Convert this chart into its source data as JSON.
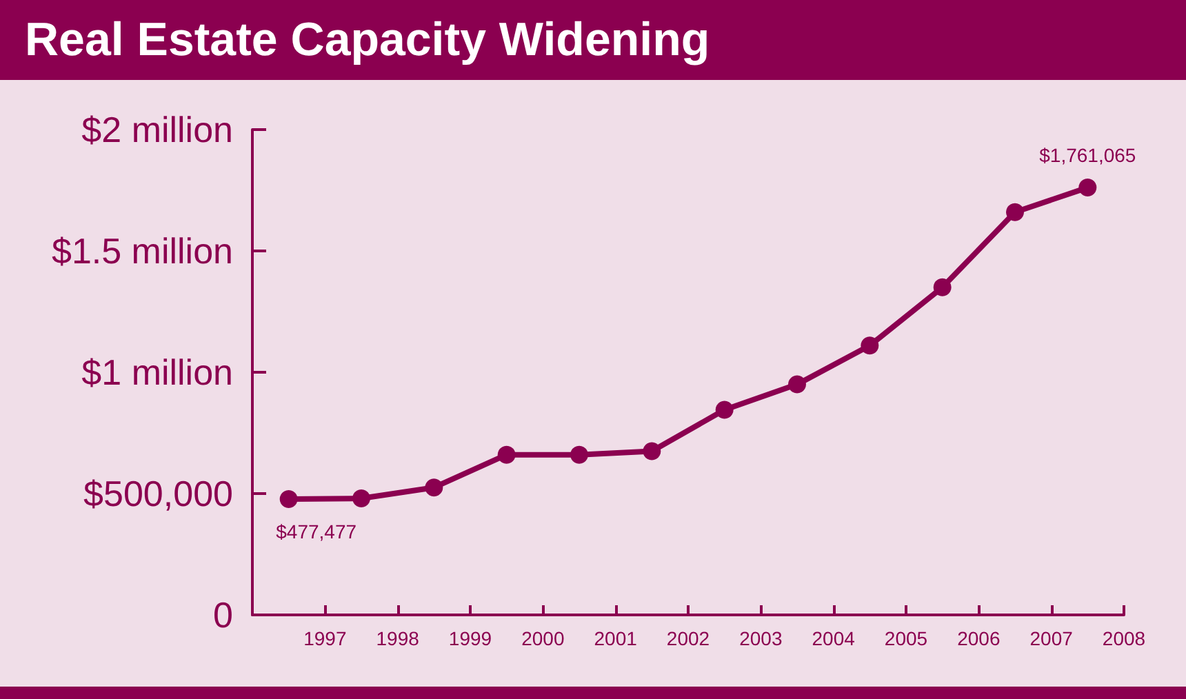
{
  "chart_data": {
    "type": "line",
    "title": "Real Estate Capacity Widening",
    "x": [
      1996.5,
      1997.5,
      1998.5,
      1999.5,
      2000.5,
      2001.5,
      2002.5,
      2003.5,
      2004.5,
      2005.5,
      2006.5,
      2007.5
    ],
    "series": [
      {
        "color": "#8b0050",
        "values": [
          477477,
          480000,
          525000,
          660000,
          660000,
          675000,
          845000,
          950000,
          1110000,
          1350000,
          1660000,
          1761065
        ]
      }
    ],
    "xlim": [
      1996,
      2008
    ],
    "xticks": [
      1997,
      1998,
      1999,
      2000,
      2001,
      2002,
      2003,
      2004,
      2005,
      2006,
      2007,
      2008
    ],
    "ylim": [
      0,
      2000000
    ],
    "yticks": [
      0,
      {
        "value": 500000,
        "label": "$500,000"
      },
      {
        "value": 1000000,
        "label": "$1 million"
      },
      {
        "value": 1500000,
        "label": "$1.5 million"
      },
      {
        "value": 2000000,
        "label": "$2 million"
      }
    ],
    "annotations": [
      {
        "text": "$477,477",
        "x": 1996.5,
        "y": 477477
      },
      {
        "text": "$1,761,065",
        "x": 2007.5,
        "y": 1761065
      }
    ],
    "marker": "circle",
    "line_style": "solid"
  }
}
